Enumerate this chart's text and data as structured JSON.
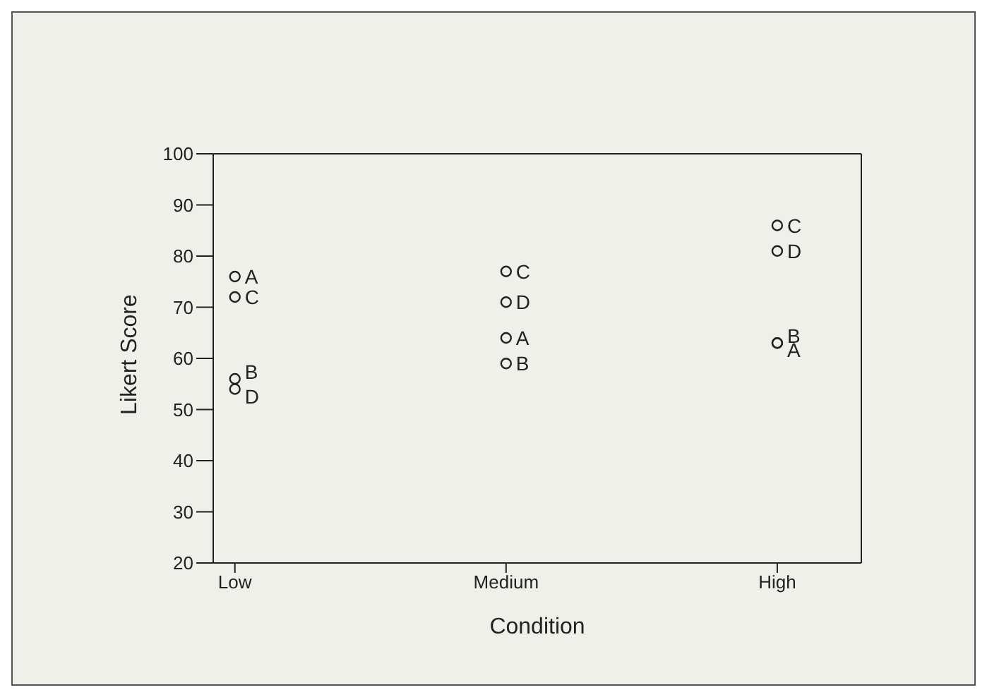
{
  "chart_data": {
    "type": "scatter",
    "xlabel": "Condition",
    "ylabel": "Likert Score",
    "categories": [
      "Low",
      "Medium",
      "High"
    ],
    "series": [
      {
        "name": "A",
        "color": "#222222",
        "values": [
          76,
          64,
          63
        ]
      },
      {
        "name": "B",
        "color": "#222222",
        "values": [
          56,
          59,
          63
        ]
      },
      {
        "name": "C",
        "color": "#222222",
        "values": [
          72,
          77,
          86
        ]
      },
      {
        "name": "D",
        "color": "#222222",
        "values": [
          54,
          71,
          81
        ]
      }
    ],
    "ylim": [
      20,
      100
    ],
    "yticks": [
      20,
      30,
      40,
      50,
      60,
      70,
      80,
      90,
      100
    ],
    "marker": "circle",
    "grid": false,
    "legend": false
  }
}
